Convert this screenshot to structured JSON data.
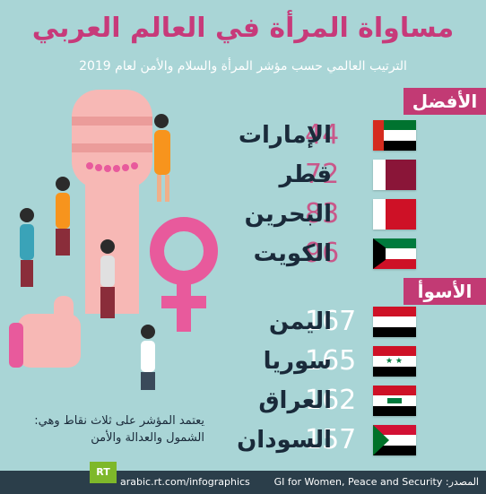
{
  "title": "مساواة المرأة في العالم العربي",
  "subtitle": "الترتيب العالمي حسب مؤشر المرأة والسلام والأمن لعام 2019",
  "best_label": "الأفضل",
  "worst_label": "الأسوأ",
  "best": [
    {
      "name": "الإمارات",
      "rank": "44",
      "flag": "uae-flag"
    },
    {
      "name": "قطر",
      "rank": "72",
      "flag": "qatar-flag"
    },
    {
      "name": "البحرين",
      "rank": "83",
      "flag": "bahrain-flag"
    },
    {
      "name": "الكويت",
      "rank": "96",
      "flag": "kuwait-flag"
    }
  ],
  "worst": [
    {
      "name": "اليمن",
      "rank": "167",
      "flag": "yemen-flag"
    },
    {
      "name": "سوريا",
      "rank": "165",
      "flag": "syria-flag"
    },
    {
      "name": "العراق",
      "rank": "162",
      "flag": "iraq-flag"
    },
    {
      "name": "السودان",
      "rank": "157",
      "flag": "sudan-flag"
    }
  ],
  "note_line1": "يعتمد المؤشر على ثلاث نقاط وهي:",
  "note_line2": "الشمول والعدالة والأمن",
  "footer": {
    "logo": "RT",
    "site": "arabic.rt.com/infographics",
    "source": "المصدر: GI for Women, Peace and Security"
  },
  "colors": {
    "accent": "#c23a74",
    "background": "#a9d5d6",
    "rank_best": "#c9588a",
    "footer": "#2b3e4a"
  }
}
